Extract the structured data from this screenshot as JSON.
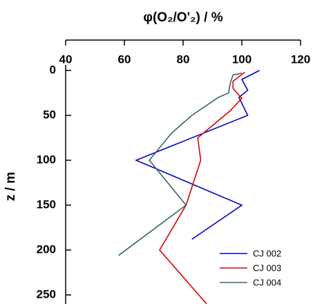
{
  "chart_data": {
    "type": "line",
    "x_label": "φ(O₂/O'₂) / %",
    "y_label": "z / m",
    "xlim": [
      40,
      120
    ],
    "xticks": [
      40,
      60,
      80,
      100,
      120
    ],
    "ylim": [
      0,
      260
    ],
    "yticks": [
      0,
      50,
      100,
      150,
      200,
      250
    ],
    "y_inverted": true,
    "legend": "lower right",
    "series": [
      {
        "name": "CJ 002",
        "color": "#0000cc",
        "x": [
          106,
          100,
          102,
          99,
          102,
          64,
          100,
          83
        ],
        "values": [
          0,
          10,
          22,
          30,
          50,
          100,
          150,
          188
        ]
      },
      {
        "name": "CJ 003",
        "color": "#dd0000",
        "x": [
          101,
          97,
          97,
          100,
          96,
          85,
          86,
          81,
          72,
          88
        ],
        "values": [
          2,
          12,
          20,
          31,
          45,
          75,
          100,
          150,
          200,
          260
        ]
      },
      {
        "name": "CJ 004",
        "color": "#336666",
        "x": [
          100,
          97,
          96,
          95.5,
          92,
          83,
          76,
          68.5,
          81,
          58
        ],
        "values": [
          3,
          5,
          15,
          25,
          30,
          50,
          70,
          100,
          150,
          206
        ]
      }
    ]
  }
}
